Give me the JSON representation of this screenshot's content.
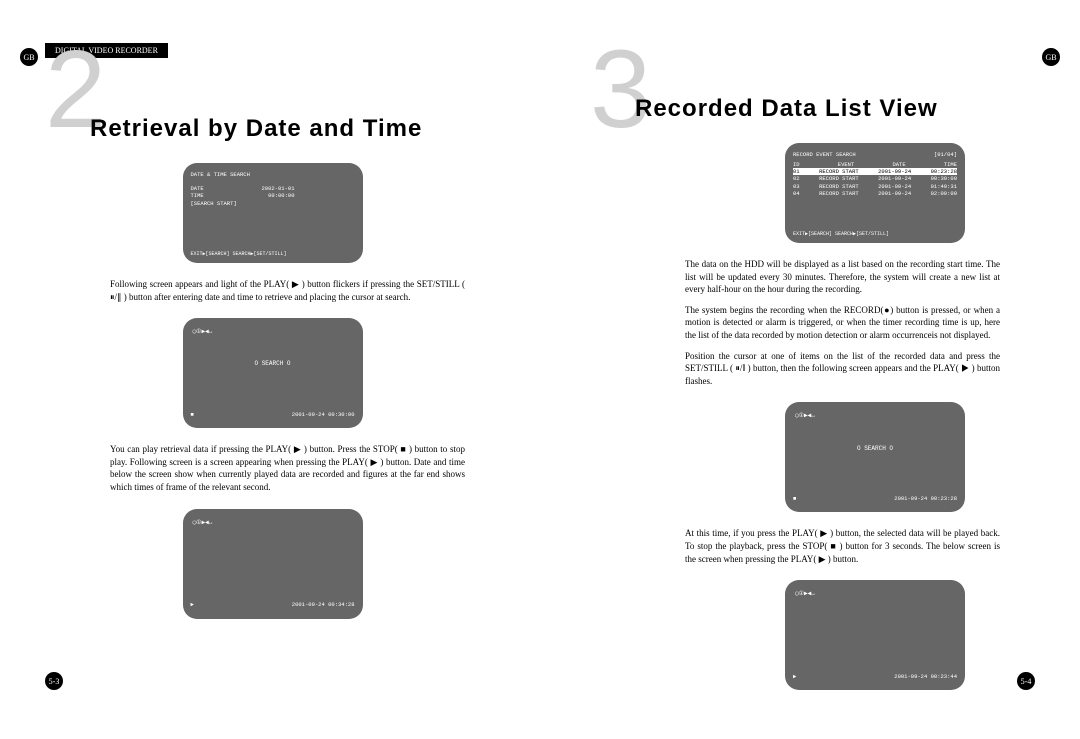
{
  "header": {
    "gb": "GB",
    "tab": "DIGITAL VIDEO RECORDER"
  },
  "left": {
    "number": "2",
    "title": "Retrieval by Date and Time",
    "screen1": {
      "title": "DATE & TIME SEARCH",
      "date_label": "DATE",
      "date_val": "2002-01-01",
      "time_label": "TIME",
      "time_val": "00:00:00",
      "search": "[SEARCH START]",
      "footer": "EXIT▶[SEARCH] SEARCH▶[SET/STILL]"
    },
    "para1": "Following screen appears and light of the PLAY( ▶ ) button flickers if pressing the SET/STILL ( ⏸/∥ ) button after entering date and time to retrieve and placing the cursor at search.",
    "screen2": {
      "icons": "◯①▶◀↔",
      "center": "O  SEARCH  O",
      "bl": "■",
      "br": "2001-09-24 00:30:00"
    },
    "para2": "You can play retrieval data if pressing the PLAY( ▶ ) button. Press the STOP( ■ ) button to stop play. Following screen is a screen appearing when pressing the PLAY( ▶ ) button. Date and time below the screen show when currently played data are recorded and figures at the far end shows which times of frame of the relevant second.",
    "screen3": {
      "icons": "◯①▶◀↔",
      "bl": "▶",
      "br": "2001-09-24 00:34:28"
    },
    "pagenum": "5-3"
  },
  "right": {
    "number": "3",
    "title": "Recorded Data List View",
    "screen1": {
      "title": "RECORD EVENT SEARCH",
      "page": "[01/04]",
      "headers": [
        "ID",
        "EVENT",
        "DATE",
        "TIME"
      ],
      "rows": [
        [
          "01",
          "RECORD START",
          "2001-09-24",
          "00:23:28"
        ],
        [
          "02",
          "RECORD START",
          "2001-09-24",
          "00:30:00"
        ],
        [
          "03",
          "RECORD START",
          "2001-09-24",
          "01:49:31"
        ],
        [
          "04",
          "RECORD START",
          "2001-09-24",
          "02:00:00"
        ]
      ],
      "footer": "EXIT▶[SEARCH] SEARCH▶[SET/STILL]"
    },
    "para1": "The data on the HDD will be displayed as a list based on the recording start time. The list will be updated every 30 minutes. Therefore, the system will create a new list at every half-hour on the hour during the recording.",
    "para2": "The system begins the recording when the RECORD(●) button is pressed, or when a motion is detected or alarm is triggered, or when the timer recording time is up, here the list of the data recorded by motion detection or alarm occurrenceis not displayed.",
    "para3": "Position the cursor at one of items on the list of the recorded data and press the SET/STILL ( ⏸/∥ ) button, then the following screen appears and the PLAY( ▶ ) button flashes.",
    "screen2": {
      "icons": "◯①▶◀↔",
      "center": "O SEARCH O",
      "bl": "■",
      "br": "2001-09-24 00:23:28"
    },
    "para4": "At this time, if you press the PLAY( ▶ ) button, the selected data will be played back. To stop the playback, press the STOP( ■ ) button for 3 seconds. The below screen is the screen when pressing the PLAY( ▶ ) button.",
    "screen3": {
      "icons": "◯①▶◀↔",
      "bl": "▶",
      "br": "2001-09-24 00:23:44"
    },
    "pagenum": "5-4"
  }
}
